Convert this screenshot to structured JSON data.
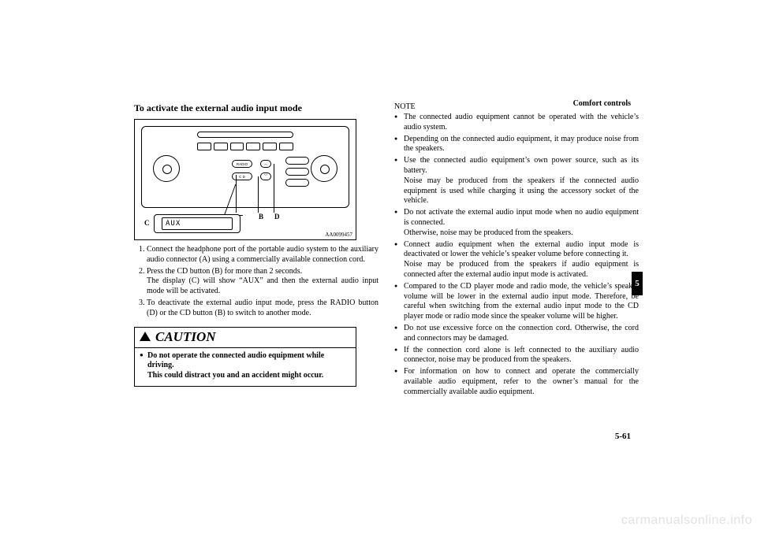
{
  "header": {
    "chapter": "Comfort controls"
  },
  "left": {
    "heading": "To activate the external audio input mode",
    "diagram": {
      "ref": "AA0099457",
      "labels": {
        "B": "B",
        "C": "C",
        "D": "D"
      },
      "radio_label": "RADIO",
      "cd_label": "C D",
      "aux_text": "AUX"
    },
    "steps": [
      "Connect the headphone port of the portable audio system to the auxiliary audio connector (A) using a commercially available connection cord.",
      "Press the CD button (B) for more than 2 seconds.\nThe display (C) will show “AUX” and then the external audio input mode will be activated.",
      "To deactivate the external audio input mode, press the RADIO button (D) or the CD button (B) to switch to another mode."
    ],
    "caution": {
      "title": "CAUTION",
      "items": [
        "Do not operate the connected audio equipment while driving.",
        "This could distract you and an accident might occur."
      ]
    }
  },
  "right": {
    "note_label": "NOTE",
    "notes": [
      "The connected audio equipment cannot be operated with the vehicle’s audio system.",
      "Depending on the connected audio equipment, it may produce noise from the speakers.",
      "Use the connected audio equipment’s own power source, such as its battery.\nNoise may be produced from the speakers if the connected audio equipment is used while charging it using the accessory socket of the vehicle.",
      "Do not activate the external audio input mode when no audio equipment is connected.\nOtherwise, noise may be produced from the speakers.",
      "Connect audio equipment when the external audio input mode is deactivated or lower the vehicle’s speaker volume before connecting it.\nNoise may be produced from the speakers if audio equipment is connected after the external audio input mode is activated.",
      "Compared to the CD player mode and radio mode, the vehicle’s speaker volume will be lower in the external audio input mode. Therefore, be careful when switching from the external audio input mode to the CD player mode or radio mode since the speaker volume will be higher.",
      "Do not use excessive force on the connection cord. Otherwise, the cord and connectors may be damaged.",
      "If the connection cord alone is left connected to the auxiliary audio connector, noise may be produced from the speakers.",
      "For information on how to connect and operate the commercially available audio equipment, refer to the owner’s manual for the commercially available audio equipment."
    ]
  },
  "footer": {
    "page": "5-61",
    "tab": "5"
  },
  "watermark": "carmanualsonline.info"
}
